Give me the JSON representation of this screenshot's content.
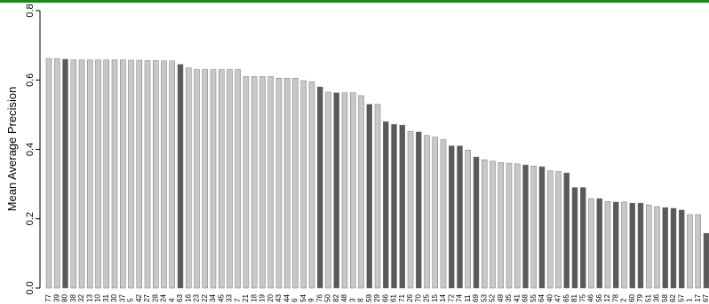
{
  "chart_data": {
    "type": "bar",
    "y_label": "Mean Average Precision",
    "categories": [
      "77",
      "39",
      "80",
      "38",
      "32",
      "13",
      "10",
      "31",
      "30",
      "37",
      "5",
      "42",
      "27",
      "28",
      "24",
      "4",
      "63",
      "16",
      "23",
      "22",
      "34",
      "45",
      "33",
      "7",
      "21",
      "18",
      "19",
      "20",
      "43",
      "44",
      "6",
      "54",
      "9",
      "76",
      "50",
      "82",
      "48",
      "3",
      "8",
      "59",
      "29",
      "66",
      "61",
      "71",
      "26",
      "70",
      "25",
      "15",
      "14",
      "72",
      "74",
      "11",
      "69",
      "53",
      "52",
      "49",
      "35",
      "41",
      "68",
      "55",
      "64",
      "40",
      "47",
      "65",
      "81",
      "75",
      "46",
      "56",
      "12",
      "78",
      "2",
      "60",
      "79",
      "51",
      "36",
      "58",
      "62",
      "57",
      "1",
      "17",
      "67"
    ],
    "values": [
      0.662,
      0.662,
      0.66,
      0.658,
      0.658,
      0.658,
      0.658,
      0.658,
      0.658,
      0.658,
      0.657,
      0.657,
      0.656,
      0.656,
      0.655,
      0.655,
      0.645,
      0.635,
      0.63,
      0.63,
      0.63,
      0.63,
      0.63,
      0.63,
      0.61,
      0.61,
      0.61,
      0.61,
      0.605,
      0.605,
      0.605,
      0.598,
      0.595,
      0.58,
      0.565,
      0.563,
      0.563,
      0.563,
      0.555,
      0.53,
      0.53,
      0.48,
      0.472,
      0.47,
      0.452,
      0.45,
      0.44,
      0.435,
      0.428,
      0.41,
      0.41,
      0.398,
      0.378,
      0.37,
      0.366,
      0.362,
      0.36,
      0.358,
      0.355,
      0.352,
      0.35,
      0.338,
      0.336,
      0.332,
      0.29,
      0.29,
      0.258,
      0.258,
      0.25,
      0.248,
      0.248,
      0.245,
      0.245,
      0.24,
      0.235,
      0.232,
      0.23,
      0.225,
      0.212,
      0.212,
      0.158
    ],
    "colors": [
      "#c8c8c8",
      "#c8c8c8",
      "#5a5a5a",
      "#c8c8c8",
      "#c8c8c8",
      "#c8c8c8",
      "#c8c8c8",
      "#c8c8c8",
      "#c8c8c8",
      "#c8c8c8",
      "#c8c8c8",
      "#c8c8c8",
      "#c8c8c8",
      "#c8c8c8",
      "#c8c8c8",
      "#c8c8c8",
      "#5a5a5a",
      "#c8c8c8",
      "#c8c8c8",
      "#c8c8c8",
      "#c8c8c8",
      "#c8c8c8",
      "#c8c8c8",
      "#c8c8c8",
      "#c8c8c8",
      "#c8c8c8",
      "#c8c8c8",
      "#c8c8c8",
      "#c8c8c8",
      "#c8c8c8",
      "#c8c8c8",
      "#c8c8c8",
      "#c8c8c8",
      "#5a5a5a",
      "#c8c8c8",
      "#5a5a5a",
      "#c8c8c8",
      "#c8c8c8",
      "#c8c8c8",
      "#5a5a5a",
      "#c8c8c8",
      "#5a5a5a",
      "#5a5a5a",
      "#5a5a5a",
      "#c8c8c8",
      "#5a5a5a",
      "#c8c8c8",
      "#c8c8c8",
      "#c8c8c8",
      "#5a5a5a",
      "#5a5a5a",
      "#c8c8c8",
      "#5a5a5a",
      "#c8c8c8",
      "#c8c8c8",
      "#c8c8c8",
      "#c8c8c8",
      "#c8c8c8",
      "#5a5a5a",
      "#c8c8c8",
      "#5a5a5a",
      "#c8c8c8",
      "#c8c8c8",
      "#5a5a5a",
      "#5a5a5a",
      "#5a5a5a",
      "#c8c8c8",
      "#5a5a5a",
      "#c8c8c8",
      "#5a5a5a",
      "#c8c8c8",
      "#5a5a5a",
      "#5a5a5a",
      "#c8c8c8",
      "#c8c8c8",
      "#5a5a5a",
      "#5a5a5a",
      "#5a5a5a",
      "#c8c8c8",
      "#c8c8c8",
      "#5a5a5a"
    ],
    "ylim": [
      0,
      0.8
    ],
    "yticks": [
      {
        "value": 0,
        "label": "0.0"
      },
      0.2,
      0.4,
      0.6,
      0.8
    ]
  }
}
